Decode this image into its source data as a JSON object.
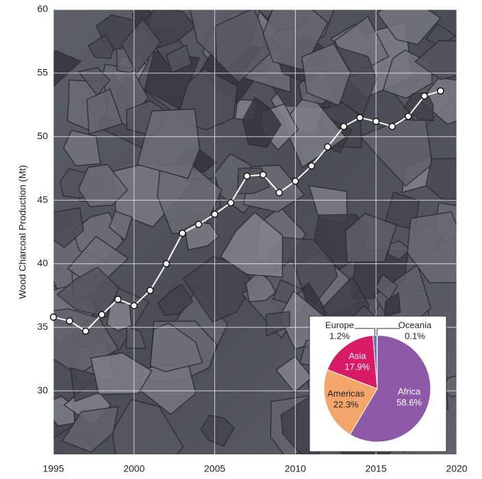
{
  "chart_data": [
    {
      "type": "line",
      "y_label": "Wood Charcoal Production (Mt)",
      "x": [
        1995,
        1996,
        1997,
        1998,
        1999,
        2000,
        2001,
        2002,
        2003,
        2004,
        2005,
        2006,
        2007,
        2008,
        2009,
        2010,
        2011,
        2012,
        2013,
        2014,
        2015,
        2016,
        2017,
        2018,
        2019
      ],
      "values": [
        35.8,
        35.5,
        34.7,
        36.0,
        37.2,
        36.7,
        37.9,
        40.0,
        42.4,
        43.1,
        43.9,
        44.8,
        46.9,
        47.0,
        45.6,
        46.5,
        47.7,
        49.2,
        50.8,
        51.5,
        51.2,
        50.8,
        51.6,
        53.2,
        53.6
      ],
      "color": "#ffffff",
      "xlim": [
        1995,
        2020
      ],
      "xticks": [
        1995,
        2000,
        2005,
        2010,
        2015,
        2020
      ],
      "ylim": [
        25,
        60
      ],
      "yticks": [
        30,
        35,
        40,
        45,
        50,
        55,
        60
      ],
      "grid": true
    },
    {
      "type": "pie",
      "categories": [
        "Africa",
        "Americas",
        "Asia",
        "Europe",
        "Oceania"
      ],
      "values": [
        58.6,
        22.3,
        17.9,
        1.2,
        0.1
      ],
      "value_labels": [
        "58.6%",
        "22.3%",
        "17.9%",
        "1.2%",
        "0.1%"
      ],
      "colors": [
        "#8e5aa8",
        "#f4a56a",
        "#d81b64",
        "#5b7dc8",
        "#333333"
      ]
    }
  ]
}
